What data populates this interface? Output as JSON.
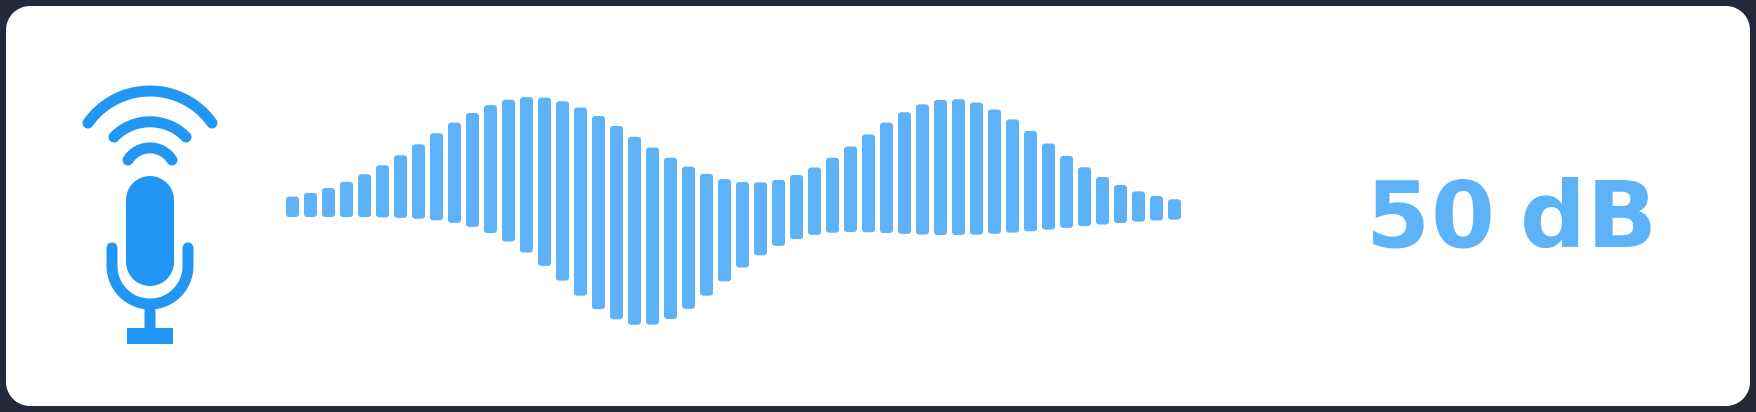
{
  "meter": {
    "level_value": "50",
    "level_unit": "dB",
    "mic_icon": "podcast-microphone-icon",
    "colors": {
      "background": "#242838",
      "card": "#ffffff",
      "mic": "#2196f3",
      "wave": "#5eb2f7",
      "text": "#5eb2f7"
    }
  }
}
